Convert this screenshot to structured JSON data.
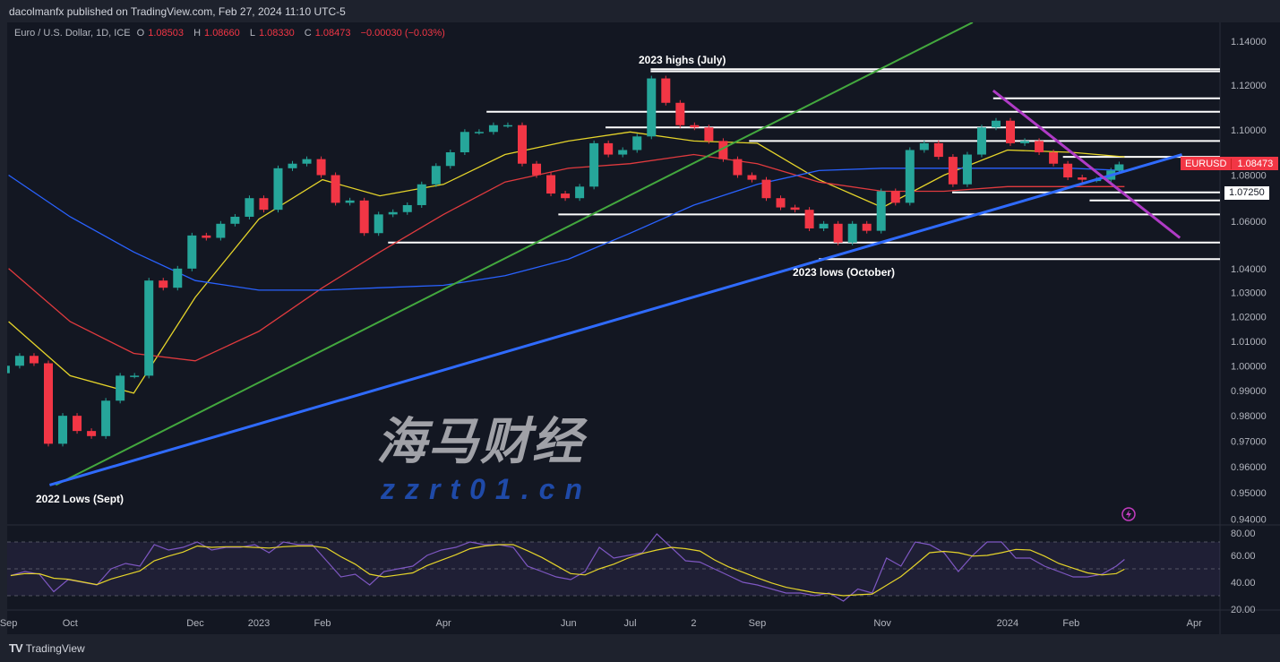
{
  "header": {
    "published": "dacolmanfx published on TradingView.com, Feb 27, 2024 11:10 UTC-5"
  },
  "legend": {
    "symbol": "Euro / U.S. Dollar, 1D, ICE",
    "open_label": "O",
    "open": "1.08503",
    "high_label": "H",
    "high": "1.08660",
    "low_label": "L",
    "low": "1.08330",
    "close_label": "C",
    "close": "1.08473",
    "change": "−0.00030 (−0.03%)"
  },
  "price_labels": {
    "symbol_tag": "EURUSD",
    "last_price": "1.08473",
    "level_tag": "1.07250"
  },
  "annotations": {
    "highs": "2023 highs (July)",
    "lows_2023": "2023 lows (October)",
    "lows_2022": "2022 Lows (Sept)"
  },
  "footer": {
    "brand": "TradingView"
  },
  "watermark": {
    "cn": "海马财经",
    "site": "zzrt01.cn"
  },
  "colors": {
    "up": "#26a69a",
    "down": "#f23645",
    "ma50": "#e5d42a",
    "ma100": "#e03a3e",
    "ma200": "#2962ff",
    "green_trend": "#43a83e",
    "blue_trend": "#2f6bff",
    "purple_trend": "#b03bc6",
    "rsi": "#7e57c2",
    "rsi_signal": "#e5d42a"
  },
  "chart_data": [
    {
      "type": "candlestick",
      "title": "",
      "scale": "log",
      "ylim": [
        0.935,
        1.149
      ],
      "y_ticks": [
        "1.14000",
        "1.12000",
        "1.10000",
        "1.08000",
        "1.06000",
        "1.04000",
        "1.03000",
        "1.02000",
        "1.01000",
        "1.00000",
        "0.99000",
        "0.98000",
        "0.97000",
        "0.96000",
        "0.95000",
        "0.94000"
      ],
      "x_ticks": [
        {
          "label": "Sep",
          "date": "2022-09-01"
        },
        {
          "label": "Oct",
          "date": "2022-10-01"
        },
        {
          "label": "Dec",
          "date": "2022-12-01"
        },
        {
          "label": "2023",
          "date": "2023-01-01"
        },
        {
          "label": "Feb",
          "date": "2023-02-01"
        },
        {
          "label": "Apr",
          "date": "2023-04-01"
        },
        {
          "label": "Jun",
          "date": "2023-06-01"
        },
        {
          "label": "Jul",
          "date": "2023-07-01"
        },
        {
          "label": "2",
          "date": "2023-08-01"
        },
        {
          "label": "Sep",
          "date": "2023-09-01"
        },
        {
          "label": "Nov",
          "date": "2023-11-01"
        },
        {
          "label": "2024",
          "date": "2024-01-01"
        },
        {
          "label": "Feb",
          "date": "2024-02-01"
        },
        {
          "label": "Apr",
          "date": "2024-04-01"
        }
      ],
      "start_date": "2022-09-02",
      "first_open": 0.997,
      "weekly_close_dates": [
        "2022-09-02",
        "2022-09-09",
        "2022-09-16",
        "2022-09-23",
        "2022-09-30",
        "2022-10-07",
        "2022-10-14",
        "2022-10-21",
        "2022-10-28",
        "2022-11-04",
        "2022-11-11",
        "2022-11-18",
        "2022-11-25",
        "2022-12-02",
        "2022-12-09",
        "2022-12-16",
        "2022-12-23",
        "2022-12-30",
        "2023-01-06",
        "2023-01-13",
        "2023-01-20",
        "2023-01-27",
        "2023-02-03",
        "2023-02-10",
        "2023-02-17",
        "2023-02-24",
        "2023-03-03",
        "2023-03-10",
        "2023-03-17",
        "2023-03-24",
        "2023-03-31",
        "2023-04-07",
        "2023-04-14",
        "2023-04-21",
        "2023-04-28",
        "2023-05-05",
        "2023-05-12",
        "2023-05-19",
        "2023-05-26",
        "2023-06-02",
        "2023-06-09",
        "2023-06-16",
        "2023-06-23",
        "2023-06-30",
        "2023-07-07",
        "2023-07-14",
        "2023-07-21",
        "2023-07-28",
        "2023-08-04",
        "2023-08-11",
        "2023-08-18",
        "2023-08-25",
        "2023-09-01",
        "2023-09-08",
        "2023-09-15",
        "2023-09-22",
        "2023-09-29",
        "2023-10-06",
        "2023-10-13",
        "2023-10-20",
        "2023-10-27",
        "2023-11-03",
        "2023-11-10",
        "2023-11-17",
        "2023-11-24",
        "2023-12-01",
        "2023-12-08",
        "2023-12-15",
        "2023-12-22",
        "2023-12-29",
        "2024-01-05",
        "2024-01-12",
        "2024-01-19",
        "2024-01-26",
        "2024-02-02",
        "2024-02-09",
        "2024-02-16",
        "2024-02-23",
        "2024-02-27"
      ],
      "close": [
        1.0,
        1.004,
        1.001,
        0.969,
        0.98,
        0.974,
        0.972,
        0.986,
        0.996,
        0.996,
        1.035,
        1.032,
        1.04,
        1.054,
        1.053,
        1.059,
        1.062,
        1.07,
        1.065,
        1.083,
        1.085,
        1.087,
        1.08,
        1.068,
        1.069,
        1.055,
        1.063,
        1.064,
        1.067,
        1.076,
        1.084,
        1.09,
        1.099,
        1.099,
        1.102,
        1.102,
        1.085,
        1.08,
        1.072,
        1.07,
        1.075,
        1.094,
        1.089,
        1.091,
        1.097,
        1.123,
        1.112,
        1.102,
        1.101,
        1.095,
        1.087,
        1.08,
        1.078,
        1.07,
        1.066,
        1.065,
        1.057,
        1.059,
        1.051,
        1.059,
        1.056,
        1.073,
        1.068,
        1.091,
        1.094,
        1.088,
        1.076,
        1.089,
        1.101,
        1.104,
        1.094,
        1.095,
        1.09,
        1.085,
        1.079,
        1.078,
        1.078,
        1.082,
        1.0847
      ],
      "moving_averages": {
        "dates": [
          "2022-09-01",
          "2022-10-01",
          "2022-11-01",
          "2022-12-01",
          "2023-01-01",
          "2023-02-01",
          "2023-03-01",
          "2023-04-01",
          "2023-05-01",
          "2023-06-01",
          "2023-07-01",
          "2023-08-01",
          "2023-09-01",
          "2023-10-01",
          "2023-11-01",
          "2023-12-01",
          "2024-01-01",
          "2024-02-01",
          "2024-02-27"
        ],
        "ma50": [
          1.018,
          0.996,
          0.989,
          1.028,
          1.061,
          1.078,
          1.071,
          1.076,
          1.089,
          1.095,
          1.099,
          1.095,
          1.094,
          1.078,
          1.066,
          1.08,
          1.091,
          1.09,
          1.088
        ],
        "ma100": [
          1.04,
          1.018,
          1.005,
          1.002,
          1.014,
          1.032,
          1.047,
          1.063,
          1.077,
          1.083,
          1.085,
          1.089,
          1.085,
          1.077,
          1.073,
          1.073,
          1.075,
          1.075,
          1.075
        ],
        "ma200": [
          1.08,
          1.062,
          1.047,
          1.035,
          1.031,
          1.031,
          1.032,
          1.033,
          1.037,
          1.044,
          1.055,
          1.067,
          1.076,
          1.082,
          1.083,
          1.083,
          1.083,
          1.083,
          1.082
        ]
      },
      "trendlines": [
        {
          "name": "green",
          "from": [
            "2022-09-24",
            0.953
          ],
          "to": [
            "2023-12-15",
            1.1487
          ]
        },
        {
          "name": "blue",
          "from": [
            "2022-09-21",
            0.953
          ],
          "to": [
            "2024-03-26",
            1.089
          ]
        },
        {
          "name": "purple",
          "from": [
            "2023-12-25",
            1.1175
          ],
          "to": [
            "2024-03-25",
            1.053
          ]
        }
      ],
      "horizontal_levels": [
        {
          "price": 1.1272,
          "from": "2023-07-11"
        },
        {
          "price": 1.1262,
          "from": "2023-07-11"
        },
        {
          "price": 1.114,
          "from": "2023-12-25"
        },
        {
          "price": 1.108,
          "from": "2023-04-22"
        },
        {
          "price": 1.101,
          "from": "2023-06-19"
        },
        {
          "price": 1.095,
          "from": "2023-08-28"
        },
        {
          "price": 1.088,
          "from": "2024-01-28"
        },
        {
          "price": 1.0725,
          "from": "2023-12-05"
        },
        {
          "price": 1.069,
          "from": "2024-02-10"
        },
        {
          "price": 1.063,
          "from": "2023-05-27"
        },
        {
          "price": 1.051,
          "from": "2023-03-05"
        },
        {
          "price": 1.044,
          "from": "2023-10-01"
        }
      ],
      "levels_end": "2024-04-15"
    },
    {
      "type": "line",
      "title": "",
      "ylim": [
        20,
        80
      ],
      "y_ticks": [
        "80.00",
        "60.00",
        "40.00",
        "20.00"
      ],
      "bands": [
        30,
        50,
        70
      ],
      "rsi": [
        45,
        48,
        46,
        33,
        42,
        40,
        38,
        50,
        54,
        52,
        68,
        64,
        66,
        70,
        64,
        66,
        66,
        68,
        62,
        70,
        68,
        68,
        56,
        44,
        46,
        38,
        48,
        50,
        52,
        60,
        64,
        66,
        70,
        68,
        68,
        66,
        52,
        48,
        44,
        42,
        48,
        66,
        58,
        60,
        62,
        76,
        66,
        56,
        55,
        50,
        45,
        40,
        38,
        35,
        32,
        32,
        30,
        32,
        26,
        35,
        32,
        58,
        52,
        70,
        68,
        62,
        48,
        60,
        70,
        70,
        58,
        58,
        52,
        48,
        44,
        44,
        46,
        52,
        57
      ]
    }
  ]
}
